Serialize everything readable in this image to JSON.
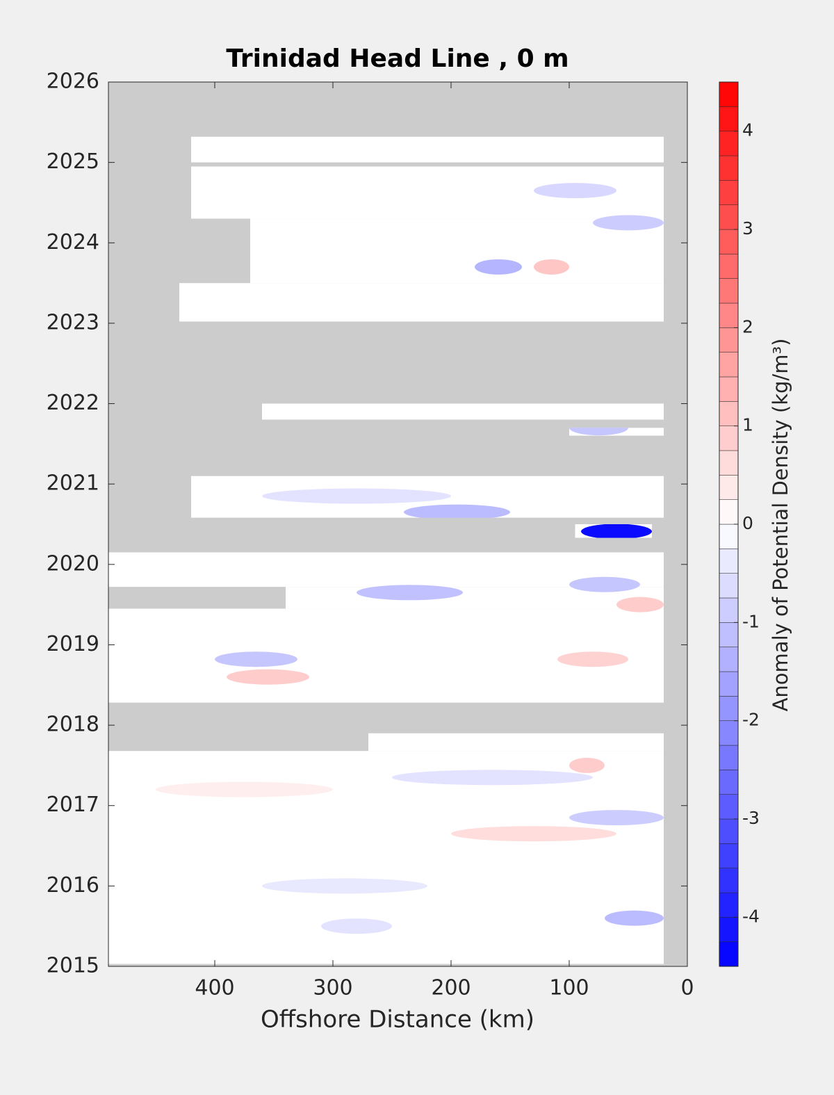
{
  "chart_data": {
    "type": "contour",
    "title": "Trinidad Head Line , 0 m",
    "xlabel": "Offshore Distance (km)",
    "xlim": [
      490,
      0
    ],
    "xticks": [
      400,
      300,
      200,
      100,
      0
    ],
    "ylim": [
      2015,
      2026
    ],
    "yticks": [
      2015,
      2016,
      2017,
      2018,
      2019,
      2020,
      2021,
      2022,
      2023,
      2024,
      2025,
      2026
    ],
    "missing_color": "#cccccc",
    "cmap": [
      "#0000ff",
      "#ffffff",
      "#ff0000"
    ],
    "clim": [
      -4.5,
      4.5
    ],
    "level_step": 0.25,
    "cticks": [
      -4,
      -3,
      -2,
      -1,
      0,
      1,
      2,
      3,
      4
    ],
    "colorbar_label": "Anomaly of Potential Density (kg/m³)",
    "coverage": [
      {
        "x": [
          490,
          20
        ],
        "t": [
          2015.03,
          2017.68
        ]
      },
      {
        "x": [
          270,
          20
        ],
        "t": [
          2017.68,
          2017.9
        ]
      },
      {
        "x": [
          490,
          20
        ],
        "t": [
          2018.28,
          2019.45
        ]
      },
      {
        "x": [
          340,
          20
        ],
        "t": [
          2019.45,
          2019.72
        ]
      },
      {
        "x": [
          490,
          20
        ],
        "t": [
          2019.72,
          2020.15
        ]
      },
      {
        "x": [
          95,
          30
        ],
        "t": [
          2020.33,
          2020.5
        ]
      },
      {
        "x": [
          420,
          20
        ],
        "t": [
          2020.58,
          2021.1
        ]
      },
      {
        "x": [
          100,
          20
        ],
        "t": [
          2021.6,
          2021.7
        ]
      },
      {
        "x": [
          360,
          20
        ],
        "t": [
          2021.8,
          2022.0
        ]
      },
      {
        "x": [
          430,
          20
        ],
        "t": [
          2023.02,
          2023.5
        ]
      },
      {
        "x": [
          370,
          20
        ],
        "t": [
          2023.5,
          2024.3
        ]
      },
      {
        "x": [
          420,
          20
        ],
        "t": [
          2024.3,
          2024.95
        ]
      },
      {
        "x": [
          420,
          20
        ],
        "t": [
          2025.0,
          2025.32
        ]
      }
    ],
    "features": [
      {
        "x": [
          400,
          330
        ],
        "t": 2018.82,
        "value": -1.0
      },
      {
        "x": [
          390,
          320
        ],
        "t": 2018.6,
        "value": 0.9
      },
      {
        "x": [
          280,
          190
        ],
        "t": 2019.65,
        "value": -1.1
      },
      {
        "x": [
          100,
          40
        ],
        "t": 2019.75,
        "value": -1.0
      },
      {
        "x": [
          60,
          20
        ],
        "t": 2019.5,
        "value": 0.9
      },
      {
        "x": [
          110,
          50
        ],
        "t": 2018.82,
        "value": 0.8
      },
      {
        "x": [
          100,
          70
        ],
        "t": 2017.5,
        "value": 0.9
      },
      {
        "x": [
          240,
          150
        ],
        "t": 2020.65,
        "value": -1.2
      },
      {
        "x": [
          180,
          140
        ],
        "t": 2023.7,
        "value": -1.3
      },
      {
        "x": [
          130,
          100
        ],
        "t": 2023.7,
        "value": 1.0
      },
      {
        "x": [
          100,
          50
        ],
        "t": 2021.7,
        "value": -1.0
      },
      {
        "x": [
          90,
          30
        ],
        "t": 2020.41,
        "value": -4.3
      },
      {
        "x": [
          70,
          20
        ],
        "t": 2015.6,
        "value": -1.2
      },
      {
        "x": [
          100,
          20
        ],
        "t": 2016.85,
        "value": -0.9
      },
      {
        "x": [
          200,
          60
        ],
        "t": 2016.65,
        "value": 0.6
      },
      {
        "x": [
          80,
          20
        ],
        "t": 2024.25,
        "value": -0.9
      },
      {
        "x": [
          130,
          60
        ],
        "t": 2024.65,
        "value": -0.7
      },
      {
        "x": [
          360,
          200
        ],
        "t": 2020.85,
        "value": -0.5
      },
      {
        "x": [
          250,
          80
        ],
        "t": 2017.35,
        "value": -0.5
      },
      {
        "x": [
          360,
          220
        ],
        "t": 2016,
        "value": -0.4
      },
      {
        "x": [
          310,
          250
        ],
        "t": 2015.5,
        "value": -0.5
      },
      {
        "x": [
          450,
          300
        ],
        "t": 2017.2,
        "value": 0.3
      }
    ]
  }
}
